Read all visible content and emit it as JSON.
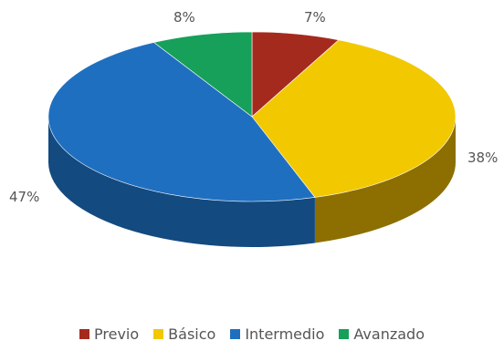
{
  "chart_data": {
    "type": "pie",
    "categories": [
      "Previo",
      "Básico",
      "Intermedio",
      "Avanzado"
    ],
    "values": [
      7,
      38,
      47,
      8
    ],
    "labels": [
      "7%",
      "38%",
      "47%",
      "8%"
    ],
    "colors": [
      "#a52a1e",
      "#f2c800",
      "#1f6fc0",
      "#16a05a"
    ],
    "side_colors": [
      "#6e1a12",
      "#8c6f00",
      "#134a80",
      "#0c6a3b"
    ],
    "legend_position": "bottom"
  }
}
